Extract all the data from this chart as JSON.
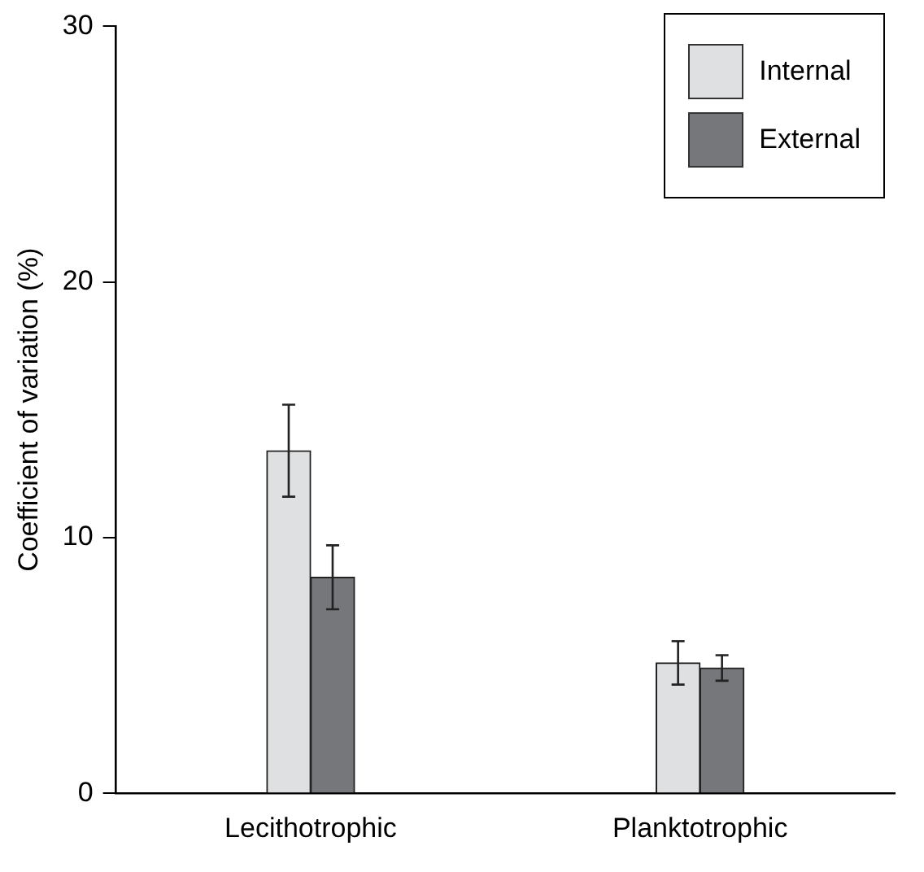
{
  "chart_data": {
    "type": "bar",
    "ylabel": "Coefficient of variation (%)",
    "categories": [
      "Lecithotrophic",
      "Planktotrophic"
    ],
    "series": [
      {
        "name": "Internal",
        "color": "#dfe0e2",
        "values": [
          13.4,
          5.1
        ],
        "errors": [
          1.8,
          0.85
        ]
      },
      {
        "name": "External",
        "color": "#76777b",
        "values": [
          8.45,
          4.9
        ],
        "errors": [
          1.25,
          0.5
        ]
      }
    ],
    "ylim": [
      0,
      30
    ],
    "yticks": [
      0,
      10,
      20,
      30
    ],
    "grid": false,
    "legend": "top right"
  }
}
